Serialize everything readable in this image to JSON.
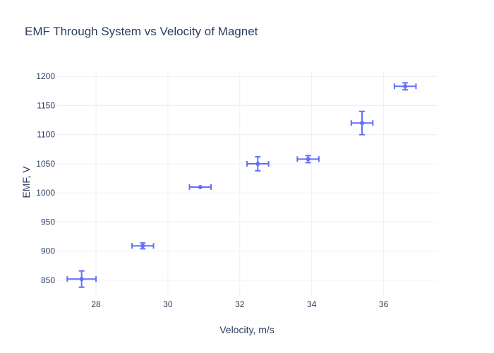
{
  "chart_data": {
    "type": "scatter",
    "title": "EMF Through System vs Velocity of Magnet",
    "xlabel": "Velocity, m/s",
    "ylabel": "EMF, V",
    "xlim": [
      26.9,
      37.5
    ],
    "ylim": [
      822,
      1210
    ],
    "x_ticks": [
      28,
      30,
      32,
      34,
      36
    ],
    "y_ticks": [
      850,
      900,
      950,
      1000,
      1050,
      1100,
      1150,
      1200
    ],
    "grid": true,
    "legend": "none",
    "color": "#636efa",
    "points": [
      {
        "x": 27.6,
        "y": 852,
        "x_err": 0.4,
        "y_err": 14
      },
      {
        "x": 29.3,
        "y": 909,
        "x_err": 0.3,
        "y_err": 5
      },
      {
        "x": 30.9,
        "y": 1010,
        "x_err": 0.3,
        "y_err": 0
      },
      {
        "x": 32.5,
        "y": 1050,
        "x_err": 0.3,
        "y_err": 12
      },
      {
        "x": 33.9,
        "y": 1058,
        "x_err": 0.3,
        "y_err": 6
      },
      {
        "x": 35.4,
        "y": 1120,
        "x_err": 0.3,
        "y_err": 20
      },
      {
        "x": 36.6,
        "y": 1183,
        "x_err": 0.3,
        "y_err": 6
      }
    ]
  }
}
